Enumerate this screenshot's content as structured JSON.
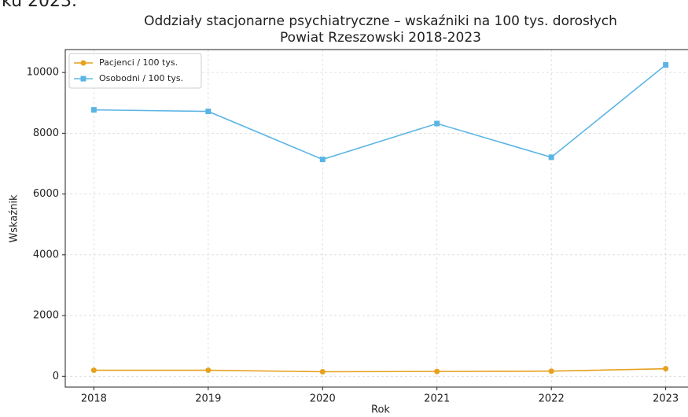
{
  "header": {
    "text": "ku 2023."
  },
  "chart_data": {
    "type": "line",
    "title": "Oddziały stacjonarne psychiatryczne – wskaźniki na 100 tys. dorosłych",
    "subtitle": "Powiat Rzeszowski 2018-2023",
    "xlabel": "Rok",
    "ylabel": "Wskaźnik",
    "x": [
      2018,
      2019,
      2020,
      2021,
      2022,
      2023
    ],
    "series": [
      {
        "name": "Pacjenci / 100 tys.",
        "color": "#e6a11f",
        "marker": "circle",
        "values": [
          200,
          200,
          150,
          160,
          170,
          250
        ]
      },
      {
        "name": "Osobodni / 100 tys.",
        "color": "#5bb5e4",
        "marker": "square",
        "values": [
          8770,
          8720,
          7140,
          8320,
          7210,
          10250
        ]
      }
    ],
    "xlim": [
      2017.75,
      2023.25
    ],
    "xticks": [
      2018,
      2019,
      2020,
      2021,
      2022,
      2023
    ],
    "ylim": [
      -355,
      10755
    ],
    "yticks": [
      0,
      2000,
      4000,
      6000,
      8000,
      10000
    ],
    "grid": true,
    "legend": "upper left"
  }
}
